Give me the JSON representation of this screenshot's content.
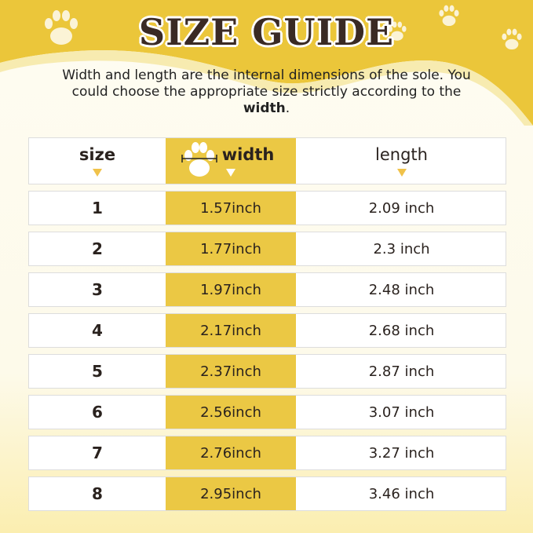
{
  "title": "SIZE GUIDE",
  "description": {
    "text": "Width and length are the internal dimensions of the sole. You could choose the appropriate size strictly according to the ",
    "bold": "width",
    "end": "."
  },
  "colors": {
    "accent": "#ebc844",
    "title": "#3a2a24",
    "background": "#fefcf2"
  },
  "table": {
    "headers": [
      "size",
      "width",
      "length"
    ],
    "rows": [
      [
        "1",
        "1.57inch",
        "2.09 inch"
      ],
      [
        "2",
        "1.77inch",
        "2.3 inch"
      ],
      [
        "3",
        "1.97inch",
        "2.48 inch"
      ],
      [
        "4",
        "2.17inch",
        "2.68 inch"
      ],
      [
        "5",
        "2.37inch",
        "2.87 inch"
      ],
      [
        "6",
        "2.56inch",
        "3.07 inch"
      ],
      [
        "7",
        "2.76inch",
        "3.27 inch"
      ],
      [
        "8",
        "2.95inch",
        "3.46 inch"
      ]
    ]
  }
}
